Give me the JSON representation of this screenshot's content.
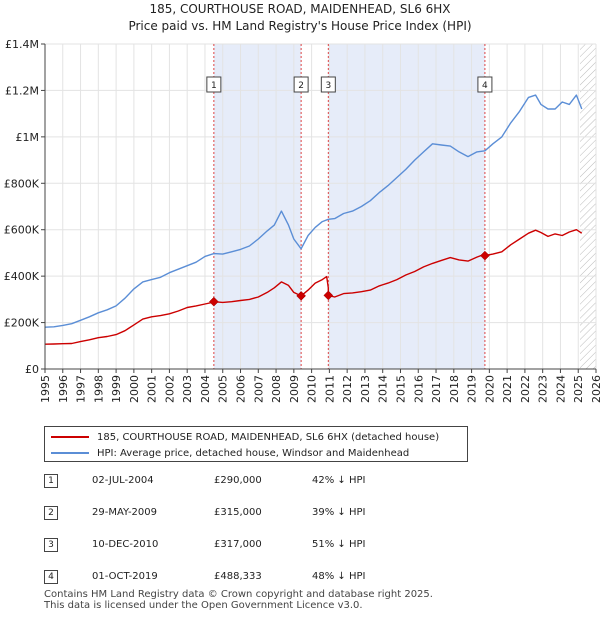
{
  "chart_data": {
    "type": "line",
    "title": "185, COURTHOUSE ROAD, MAIDENHEAD, SL6 6HX",
    "subtitle": "Price paid vs. HM Land Registry's House Price Index (HPI)",
    "xlabel": "",
    "ylabel": "",
    "xlim": [
      1995,
      2026
    ],
    "ylim": [
      0,
      1400000
    ],
    "x_ticks": [
      "1995",
      "1996",
      "1997",
      "1998",
      "1999",
      "2000",
      "2001",
      "2002",
      "2003",
      "2004",
      "2005",
      "2006",
      "2007",
      "2008",
      "2009",
      "2010",
      "2011",
      "2012",
      "2013",
      "2014",
      "2015",
      "2016",
      "2017",
      "2018",
      "2019",
      "2020",
      "2021",
      "2022",
      "2023",
      "2024",
      "2025",
      "2026"
    ],
    "y_ticks": [
      {
        "value": 0,
        "label": "£0"
      },
      {
        "value": 200000,
        "label": "£200K"
      },
      {
        "value": 400000,
        "label": "£400K"
      },
      {
        "value": 600000,
        "label": "£600K"
      },
      {
        "value": 800000,
        "label": "£800K"
      },
      {
        "value": 1000000,
        "label": "£1M"
      },
      {
        "value": 1200000,
        "label": "£1.2M"
      },
      {
        "value": 1400000,
        "label": "£1.4M"
      }
    ],
    "shaded_ranges": [
      [
        2004.5,
        2009.41
      ],
      [
        2010.94,
        2019.75
      ]
    ],
    "future_hatch_from": 2025.1,
    "series": [
      {
        "name": "185, COURTHOUSE ROAD, MAIDENHEAD, SL6 6HX (detached house)",
        "color": "#cc0000",
        "x": [
          1995.0,
          1995.5,
          1996.0,
          1996.5,
          1997.0,
          1997.5,
          1998.0,
          1998.5,
          1999.0,
          1999.5,
          2000.0,
          2000.5,
          2001.0,
          2001.5,
          2002.0,
          2002.5,
          2003.0,
          2003.5,
          2004.0,
          2004.5,
          2004.5,
          2005.0,
          2005.5,
          2006.0,
          2006.5,
          2007.0,
          2007.5,
          2007.9,
          2008.3,
          2008.7,
          2009.0,
          2009.41,
          2009.41,
          2009.8,
          2010.2,
          2010.6,
          2010.85,
          2010.94,
          2010.94,
          2011.3,
          2011.8,
          2012.3,
          2012.8,
          2013.3,
          2013.8,
          2014.3,
          2014.8,
          2015.3,
          2015.8,
          2016.3,
          2016.8,
          2017.3,
          2017.8,
          2018.3,
          2018.8,
          2019.3,
          2019.75,
          2019.75,
          2020.2,
          2020.7,
          2021.2,
          2021.7,
          2022.2,
          2022.6,
          2022.9,
          2023.3,
          2023.7,
          2024.1,
          2024.5,
          2024.9,
          2025.2
        ],
        "y": [
          107000,
          107500,
          109000,
          110000,
          118000,
          126000,
          135000,
          140000,
          148000,
          165000,
          190000,
          215000,
          225000,
          230000,
          238000,
          250000,
          265000,
          272000,
          280000,
          288000,
          290000,
          287000,
          290000,
          295000,
          300000,
          310000,
          330000,
          350000,
          375000,
          360000,
          330000,
          315000,
          315000,
          340000,
          370000,
          385000,
          398000,
          350000,
          317000,
          310000,
          325000,
          328000,
          333000,
          340000,
          358000,
          370000,
          385000,
          405000,
          420000,
          440000,
          455000,
          468000,
          480000,
          470000,
          465000,
          482000,
          495000,
          488333,
          495000,
          505000,
          535000,
          560000,
          585000,
          598000,
          588000,
          571000,
          582000,
          575000,
          590000,
          600000,
          585000
        ]
      },
      {
        "name": "HPI: Average price, detached house, Windsor and Maidenhead",
        "color": "#5b8ed6",
        "x": [
          1995.0,
          1995.5,
          1996.0,
          1996.5,
          1997.0,
          1997.5,
          1998.0,
          1998.5,
          1999.0,
          1999.5,
          2000.0,
          2000.5,
          2001.0,
          2001.5,
          2002.0,
          2002.5,
          2003.0,
          2003.5,
          2004.0,
          2004.5,
          2005.0,
          2005.5,
          2006.0,
          2006.5,
          2007.0,
          2007.5,
          2007.9,
          2008.3,
          2008.7,
          2009.0,
          2009.41,
          2009.8,
          2010.2,
          2010.6,
          2010.94,
          2011.3,
          2011.8,
          2012.3,
          2012.8,
          2013.3,
          2013.8,
          2014.3,
          2014.8,
          2015.3,
          2015.8,
          2016.3,
          2016.8,
          2017.3,
          2017.8,
          2018.3,
          2018.8,
          2019.3,
          2019.75,
          2020.2,
          2020.7,
          2021.2,
          2021.7,
          2022.2,
          2022.6,
          2022.9,
          2023.3,
          2023.7,
          2024.1,
          2024.5,
          2024.9,
          2025.2
        ],
        "y": [
          180000,
          182000,
          188000,
          195000,
          210000,
          225000,
          242000,
          255000,
          272000,
          305000,
          345000,
          375000,
          385000,
          395000,
          415000,
          430000,
          445000,
          460000,
          485000,
          497000,
          495000,
          505000,
          515000,
          530000,
          560000,
          595000,
          620000,
          680000,
          620000,
          560000,
          518000,
          575000,
          610000,
          635000,
          645000,
          648000,
          670000,
          680000,
          700000,
          725000,
          760000,
          790000,
          825000,
          860000,
          900000,
          935000,
          970000,
          965000,
          960000,
          935000,
          915000,
          935000,
          940000,
          970000,
          1000000,
          1060000,
          1110000,
          1170000,
          1180000,
          1140000,
          1120000,
          1120000,
          1150000,
          1140000,
          1180000,
          1120000
        ]
      }
    ],
    "markers": [
      {
        "label": "1",
        "x": 2004.5,
        "y": 290000
      },
      {
        "label": "2",
        "x": 2009.41,
        "y": 315000
      },
      {
        "label": "3",
        "x": 2010.94,
        "y": 317000
      },
      {
        "label": "4",
        "x": 2019.75,
        "y": 488333
      }
    ]
  },
  "legend": {
    "property_label": "185, COURTHOUSE ROAD, MAIDENHEAD, SL6 6HX (detached house)",
    "hpi_label": "HPI: Average price, detached house, Windsor and Maidenhead"
  },
  "sales": [
    {
      "num": "1",
      "date": "02-JUL-2004",
      "price": "£290,000",
      "hpi": "42% ↓ HPI"
    },
    {
      "num": "2",
      "date": "29-MAY-2009",
      "price": "£315,000",
      "hpi": "39% ↓ HPI"
    },
    {
      "num": "3",
      "date": "10-DEC-2010",
      "price": "£317,000",
      "hpi": "51% ↓ HPI"
    },
    {
      "num": "4",
      "date": "01-OCT-2019",
      "price": "£488,333",
      "hpi": "48% ↓ HPI"
    }
  ],
  "footer": {
    "line1": "Contains HM Land Registry data © Crown copyright and database right 2025.",
    "line2": "This data is licensed under the Open Government Licence v3.0."
  }
}
